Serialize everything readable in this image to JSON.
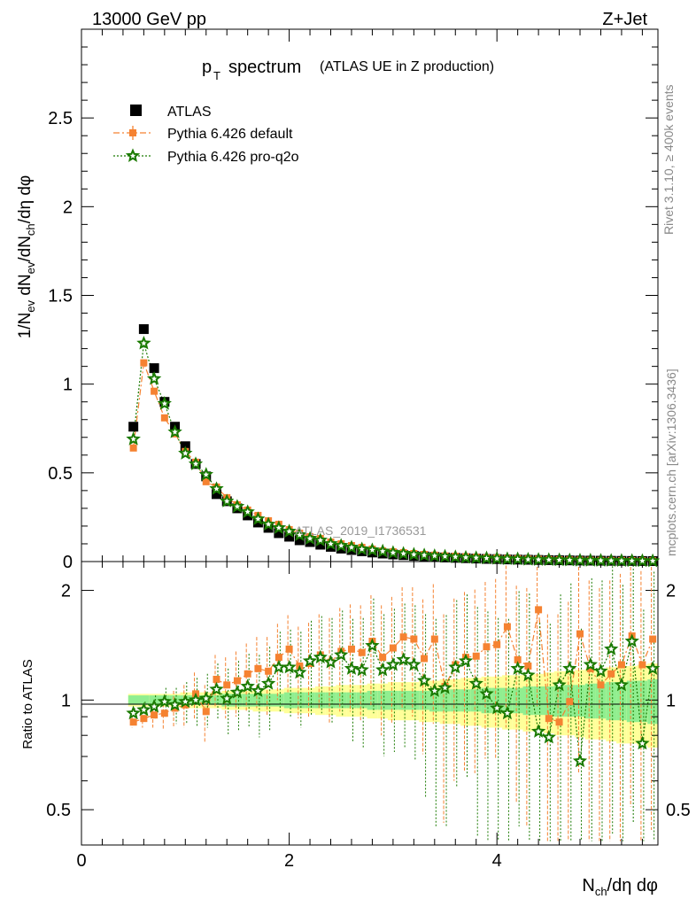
{
  "header": {
    "energy_label": "13000 GeV pp",
    "process_label": "Z+Jet",
    "title_main": "p",
    "title_sub": "T",
    "title_word": "spectrum",
    "title_note": "(ATLAS UE in Z production)",
    "side_label_top": "Rivet 3.1.10, ≥ 400k events",
    "side_label_bottom": "mcplots.cern.ch [arXiv:1306.3436]",
    "watermark": "ATLAS_2019_I1736531"
  },
  "axes": {
    "ylabel_main": "1/N_ev dN_ev/dN_ch/dη dφ",
    "ylabel_ratio": "Ratio to ATLAS",
    "xlabel": "N_ch/dη dφ",
    "x_ticks": [
      "0",
      "2",
      "4"
    ],
    "main_y_ticks": [
      "0",
      "0.5",
      "1",
      "1.5",
      "2",
      "2.5"
    ],
    "ratio_y_ticks_left": [
      "0.5",
      "1",
      "2"
    ],
    "ratio_y_ticks_right": [
      "0.5",
      "1",
      "2"
    ]
  },
  "legend": {
    "atlas": "ATLAS",
    "default": "Pythia 6.426 default",
    "proq2o": "Pythia 6.426 pro-q2o"
  },
  "colors": {
    "data": "#000000",
    "default": "#f58231",
    "proq2o": "#1a7a00",
    "band_inner": "#90ee90",
    "band_outer": "#ffff99"
  },
  "chart_data": [
    {
      "type": "scatter",
      "title": "p_T spectrum (ATLAS UE in Z production)",
      "xlabel": "N_ch/dη dφ",
      "ylabel": "1/N_ev dN_ev/dN_ch/dη dφ",
      "xlim": [
        0,
        5.55
      ],
      "ylim": [
        0,
        3.0
      ],
      "x": [
        0.5,
        0.6,
        0.7,
        0.8,
        0.9,
        1.0,
        1.1,
        1.2,
        1.3,
        1.4,
        1.5,
        1.6,
        1.7,
        1.8,
        1.9,
        2.0,
        2.1,
        2.2,
        2.3,
        2.4,
        2.5,
        2.6,
        2.7,
        2.8,
        2.9,
        3.0,
        3.1,
        3.2,
        3.3,
        3.4,
        3.5,
        3.6,
        3.7,
        3.8,
        3.9,
        4.0,
        4.1,
        4.2,
        4.3,
        4.4,
        4.5,
        4.6,
        4.7,
        4.8,
        4.9,
        5.0,
        5.1,
        5.2,
        5.3,
        5.4,
        5.5
      ],
      "series": [
        {
          "name": "ATLAS",
          "values": [
            0.76,
            1.31,
            1.09,
            0.9,
            0.76,
            0.65,
            0.55,
            0.48,
            0.38,
            0.34,
            0.3,
            0.26,
            0.22,
            0.19,
            0.16,
            0.14,
            0.12,
            0.11,
            0.095,
            0.083,
            0.073,
            0.065,
            0.058,
            0.051,
            0.045,
            0.04,
            0.036,
            0.032,
            0.029,
            0.026,
            0.023,
            0.021,
            0.019,
            0.017,
            0.015,
            0.014,
            0.012,
            0.011,
            0.01,
            0.009,
            0.008,
            0.0072,
            0.0065,
            0.0058,
            0.0052,
            0.0047,
            0.0042,
            0.0038,
            0.0034,
            0.003,
            0.0027
          ]
        },
        {
          "name": "Pythia 6.426 default",
          "values": [
            0.64,
            1.12,
            0.96,
            0.81,
            0.72,
            0.62,
            0.56,
            0.45,
            0.42,
            0.36,
            0.32,
            0.29,
            0.26,
            0.23,
            0.21,
            0.18,
            0.16,
            0.14,
            0.13,
            0.11,
            0.1,
            0.09,
            0.08,
            0.07,
            0.06,
            0.055,
            0.05,
            0.045,
            0.04,
            0.036,
            0.032,
            0.03,
            0.027,
            0.024,
            0.021,
            0.02,
            0.017,
            0.016,
            0.014,
            0.013,
            0.011,
            0.01,
            0.009,
            0.008,
            0.007,
            0.0065,
            0.006,
            0.0055,
            0.005,
            0.0045,
            0.004
          ]
        },
        {
          "name": "Pythia 6.426 pro-q2o",
          "values": [
            0.69,
            1.23,
            1.03,
            0.89,
            0.73,
            0.61,
            0.55,
            0.49,
            0.41,
            0.34,
            0.31,
            0.28,
            0.24,
            0.21,
            0.19,
            0.17,
            0.15,
            0.13,
            0.12,
            0.1,
            0.09,
            0.08,
            0.07,
            0.065,
            0.058,
            0.05,
            0.045,
            0.04,
            0.036,
            0.032,
            0.029,
            0.026,
            0.023,
            0.021,
            0.019,
            0.017,
            0.015,
            0.014,
            0.012,
            0.011,
            0.01,
            0.009,
            0.008,
            0.007,
            0.0065,
            0.006,
            0.0055,
            0.005,
            0.0045,
            0.004,
            0.0035
          ]
        }
      ]
    },
    {
      "type": "scatter",
      "title": "Ratio to ATLAS",
      "xlabel": "N_ch/dη dφ",
      "ylabel": "Ratio to ATLAS",
      "xlim": [
        0,
        5.55
      ],
      "ylim": [
        0.4,
        2.4
      ],
      "scale": "log",
      "x": [
        0.5,
        0.6,
        0.7,
        0.8,
        0.9,
        1.0,
        1.1,
        1.2,
        1.3,
        1.4,
        1.5,
        1.6,
        1.7,
        1.8,
        1.9,
        2.0,
        2.1,
        2.2,
        2.3,
        2.4,
        2.5,
        2.6,
        2.7,
        2.8,
        2.9,
        3.0,
        3.1,
        3.2,
        3.3,
        3.4,
        3.5,
        3.6,
        3.7,
        3.8,
        3.9,
        4.0,
        4.1,
        4.2,
        4.3,
        4.4,
        4.5,
        4.6,
        4.7,
        4.8,
        4.9,
        5.0,
        5.1,
        5.2,
        5.3,
        5.4,
        5.5
      ],
      "band_inner": [
        0.03,
        0.03,
        0.03,
        0.03,
        0.03,
        0.03,
        0.03,
        0.03,
        0.03,
        0.04,
        0.04,
        0.04,
        0.04,
        0.04,
        0.04,
        0.05,
        0.05,
        0.05,
        0.05,
        0.05,
        0.05,
        0.05,
        0.05,
        0.06,
        0.06,
        0.06,
        0.06,
        0.06,
        0.06,
        0.07,
        0.07,
        0.07,
        0.07,
        0.07,
        0.08,
        0.08,
        0.08,
        0.08,
        0.09,
        0.09,
        0.09,
        0.1,
        0.1,
        0.1,
        0.11,
        0.11,
        0.12,
        0.12,
        0.13,
        0.13,
        0.14
      ],
      "band_outer": [
        0.04,
        0.04,
        0.04,
        0.04,
        0.04,
        0.05,
        0.05,
        0.05,
        0.05,
        0.06,
        0.06,
        0.06,
        0.07,
        0.07,
        0.07,
        0.08,
        0.08,
        0.08,
        0.09,
        0.09,
        0.1,
        0.1,
        0.1,
        0.11,
        0.11,
        0.12,
        0.12,
        0.12,
        0.13,
        0.13,
        0.14,
        0.14,
        0.15,
        0.15,
        0.16,
        0.16,
        0.17,
        0.17,
        0.18,
        0.18,
        0.19,
        0.2,
        0.2,
        0.21,
        0.22,
        0.22,
        0.23,
        0.24,
        0.24,
        0.25,
        0.26
      ],
      "series": [
        {
          "name": "Pythia 6.426 default",
          "values": [
            0.87,
            0.89,
            0.91,
            0.92,
            0.95,
            0.97,
            1.04,
            0.93,
            1.14,
            1.1,
            1.13,
            1.18,
            1.22,
            1.2,
            1.31,
            1.38,
            1.24,
            1.26,
            1.33,
            1.27,
            1.36,
            1.38,
            1.35,
            1.45,
            1.31,
            1.39,
            1.49,
            1.47,
            1.3,
            1.47,
            1.09,
            1.25,
            1.31,
            1.32,
            1.4,
            1.42,
            1.59,
            1.29,
            1.24,
            1.77,
            0.89,
            0.87,
            0.99,
            1.52,
            1.22,
            1.1,
            1.18,
            1.25,
            1.5,
            1.25,
            1.47
          ]
        },
        {
          "name": "Pythia 6.426 pro-q2o",
          "values": [
            0.92,
            0.94,
            0.96,
            0.99,
            0.97,
            0.99,
            1.0,
            1.01,
            1.07,
            1.01,
            1.05,
            1.09,
            1.06,
            1.11,
            1.23,
            1.23,
            1.19,
            1.28,
            1.31,
            1.27,
            1.33,
            1.22,
            1.21,
            1.41,
            1.21,
            1.25,
            1.29,
            1.25,
            1.13,
            1.06,
            1.08,
            1.23,
            1.28,
            1.11,
            1.04,
            0.95,
            0.92,
            1.22,
            1.17,
            0.82,
            0.79,
            1.1,
            1.22,
            0.68,
            1.25,
            1.2,
            1.38,
            1.1,
            1.45,
            0.76,
            1.22
          ]
        }
      ]
    }
  ]
}
